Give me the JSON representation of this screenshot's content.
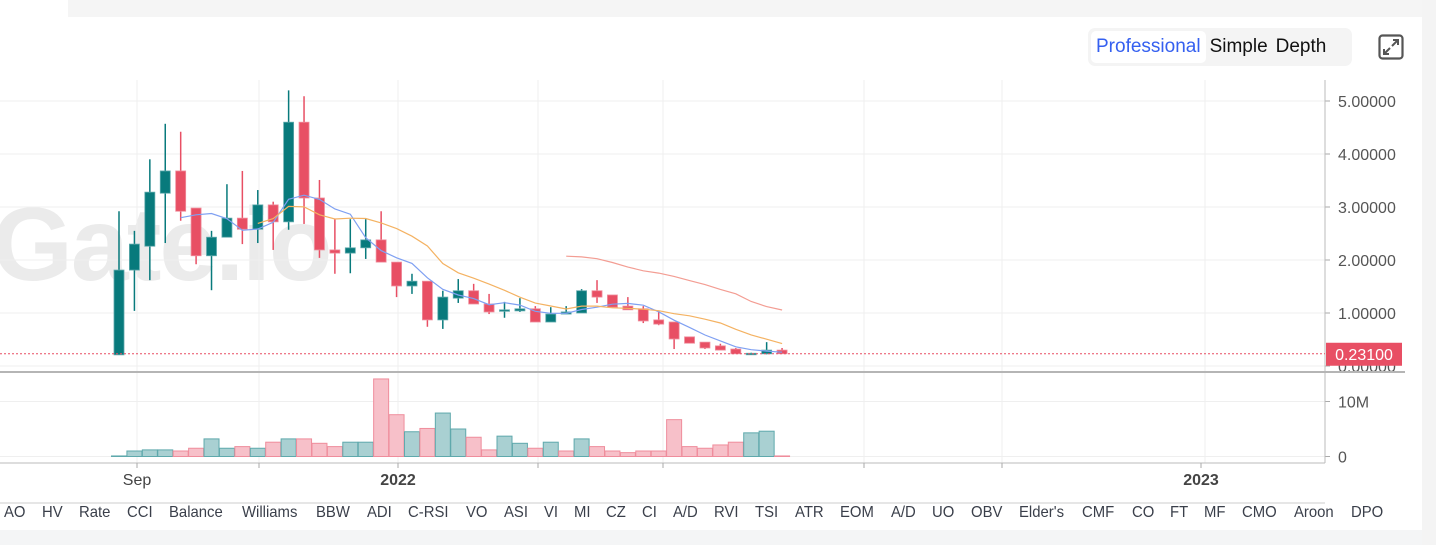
{
  "view_modes": {
    "items": [
      "Professional",
      "Simple",
      "Depth"
    ],
    "active": "Professional"
  },
  "icons": {
    "expand": "expand-icon"
  },
  "watermark": "Gate.io",
  "last_price_label": "0.23100",
  "indicator_tabs": [
    "AO",
    "HV",
    "Rate",
    "CCI",
    "Balance",
    "Williams",
    "BBW",
    "ADI",
    "C-RSI",
    "VO",
    "ASI",
    "VI",
    "MI",
    "CZ",
    "CI",
    "A/D",
    "RVI",
    "TSI",
    "ATR",
    "EOM",
    "A/D",
    "UO",
    "OBV",
    "Elder's",
    "CMF",
    "CO",
    "FT",
    "MF",
    "CMO",
    "Aroon",
    "DPO"
  ],
  "colors": {
    "up": "#087a7c",
    "down": "#e84f64",
    "vol_up": "#a9d0d2",
    "vol_down": "#f7c0c9",
    "ma5": "#7fa0f2",
    "ma10": "#f4b262",
    "ma30": "#f39d93",
    "price_line": "#e84f64"
  },
  "chart_data": {
    "type": "candlestick",
    "price_axis": {
      "ticks": [
        0,
        1,
        2,
        3,
        4,
        5
      ],
      "tick_labels": [
        "0.00000",
        "1.00000",
        "2.00000",
        "3.00000",
        "4.00000",
        "5.00000"
      ],
      "range": [
        0,
        5.3
      ]
    },
    "volume_axis": {
      "ticks": [
        0,
        10
      ],
      "tick_labels": [
        "0",
        "10M"
      ],
      "unit": "M"
    },
    "x_labels": [
      {
        "text": "Sep",
        "bold": false,
        "index": 1
      },
      {
        "text": "2022",
        "bold": true,
        "index": 18
      },
      {
        "text": "2023",
        "bold": true,
        "index": 70
      }
    ],
    "last_price": 0.231,
    "moving_averages": [
      5,
      10,
      30
    ],
    "ohlc": [
      [
        0.21,
        2.92,
        0.21,
        1.81
      ],
      [
        1.81,
        2.55,
        1.04,
        2.3
      ],
      [
        2.26,
        3.9,
        1.62,
        3.28
      ],
      [
        3.26,
        4.57,
        2.32,
        3.68
      ],
      [
        3.68,
        4.42,
        2.74,
        2.92
      ],
      [
        2.98,
        2.98,
        1.92,
        2.08
      ],
      [
        2.08,
        2.55,
        1.43,
        2.43
      ],
      [
        2.43,
        3.43,
        2.43,
        2.79
      ],
      [
        2.79,
        3.68,
        2.3,
        2.58
      ],
      [
        2.58,
        3.32,
        2.32,
        3.04
      ],
      [
        3.04,
        3.1,
        2.19,
        2.72
      ],
      [
        2.72,
        5.2,
        2.57,
        4.6
      ],
      [
        4.6,
        5.09,
        2.68,
        3.17
      ],
      [
        3.17,
        3.51,
        2.04,
        2.19
      ],
      [
        2.19,
        2.77,
        1.74,
        2.13
      ],
      [
        2.13,
        2.77,
        1.75,
        2.23
      ],
      [
        2.23,
        2.77,
        2.02,
        2.38
      ],
      [
        2.38,
        2.92,
        2.0,
        1.96
      ],
      [
        1.96,
        1.96,
        1.3,
        1.51
      ],
      [
        1.51,
        1.74,
        1.36,
        1.6
      ],
      [
        1.6,
        1.6,
        0.74,
        0.87
      ],
      [
        0.87,
        1.42,
        0.7,
        1.3
      ],
      [
        1.28,
        1.64,
        1.19,
        1.42
      ],
      [
        1.42,
        1.55,
        1.17,
        1.17
      ],
      [
        1.17,
        1.36,
        0.98,
        1.02
      ],
      [
        1.04,
        1.21,
        0.91,
        1.06
      ],
      [
        1.04,
        1.28,
        1.02,
        1.08
      ],
      [
        1.08,
        1.13,
        0.83,
        0.83
      ],
      [
        0.83,
        1.11,
        0.83,
        0.98
      ],
      [
        0.98,
        1.13,
        0.98,
        1.02
      ],
      [
        1.0,
        1.45,
        1.0,
        1.42
      ],
      [
        1.42,
        1.62,
        1.19,
        1.3
      ],
      [
        1.34,
        1.34,
        1.11,
        1.11
      ],
      [
        1.13,
        1.3,
        1.06,
        1.06
      ],
      [
        1.08,
        1.13,
        0.81,
        0.85
      ],
      [
        0.87,
        1.04,
        0.77,
        0.79
      ],
      [
        0.83,
        0.83,
        0.32,
        0.51
      ],
      [
        0.55,
        0.55,
        0.43,
        0.43
      ],
      [
        0.45,
        0.45,
        0.32,
        0.34
      ],
      [
        0.38,
        0.42,
        0.3,
        0.3
      ],
      [
        0.32,
        0.34,
        0.23,
        0.23
      ],
      [
        0.23,
        0.25,
        0.22,
        0.24
      ],
      [
        0.23,
        0.45,
        0.22,
        0.3
      ],
      [
        0.3,
        0.34,
        0.23,
        0.231
      ]
    ],
    "volume_m": [
      0.1,
      1.0,
      1.2,
      1.2,
      1.0,
      1.5,
      3.2,
      1.5,
      1.8,
      1.5,
      2.6,
      3.2,
      3.2,
      2.4,
      1.8,
      2.6,
      2.6,
      14.1,
      7.6,
      4.5,
      5.1,
      7.9,
      5.0,
      3.5,
      1.2,
      3.7,
      2.4,
      1.5,
      2.6,
      1.0,
      3.2,
      1.8,
      1.0,
      0.7,
      1.0,
      1.0,
      6.7,
      1.8,
      1.5,
      2.1,
      2.6,
      4.3,
      4.6,
      0.1
    ],
    "volume_up": [
      true,
      true,
      true,
      true,
      false,
      false,
      true,
      true,
      false,
      true,
      false,
      true,
      false,
      false,
      false,
      true,
      true,
      false,
      false,
      true,
      false,
      true,
      true,
      false,
      false,
      true,
      true,
      false,
      true,
      false,
      true,
      false,
      false,
      false,
      false,
      false,
      false,
      false,
      false,
      false,
      false,
      true,
      true,
      false
    ]
  }
}
